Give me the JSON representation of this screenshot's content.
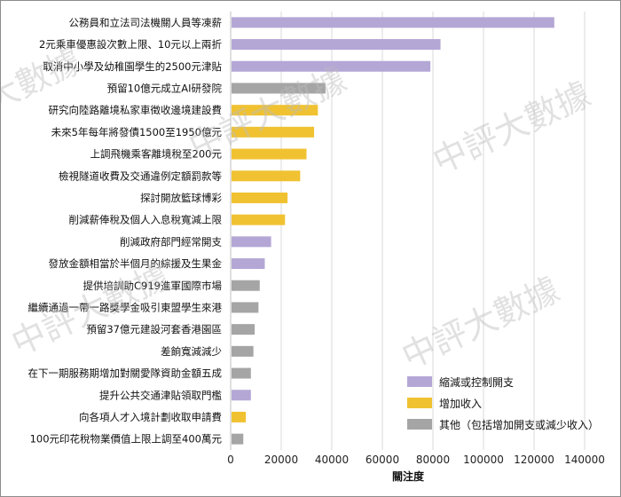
{
  "chart_data": {
    "type": "bar",
    "orientation": "horizontal",
    "xlabel": "關注度",
    "xlim": [
      0,
      140000
    ],
    "xticks": [
      0,
      20000,
      40000,
      60000,
      80000,
      100000,
      120000,
      140000
    ],
    "grid": "vertical",
    "legend_position": "bottom-right",
    "series": [
      {
        "name": "縮減或控制開支",
        "color": "#b4a7d6"
      },
      {
        "name": "增加收入",
        "color": "#f0c232"
      },
      {
        "name": "其他（包括增加開支或減少收入）",
        "color": "#a5a5a5"
      }
    ],
    "categories": [
      "公務員和立法司法機關人員等凍薪",
      "2元乘車優惠設次數上限、10元以上兩折",
      "取消中小學及幼稚園學生的2500元津貼",
      "預留10億元成立AI研發院",
      "研究向陸路離境私家車徵收邊境建設費",
      "未來5年每年將發債1500至1950億元",
      "上調飛機乘客離境稅至200元",
      "檢視隧道收費及交通違例定額罰款等",
      "探討開放籃球博彩",
      "削減薪俸稅及個人入息稅寬減上限",
      "削減政府部門經常開支",
      "發放金額相當於半個月的綜援及生果金",
      "提供培訓助C919進軍國際市場",
      "繼續通過一帶一路獎學金吸引東盟學生來港",
      "預留37億元建設河套香港園區",
      "差餉寬減減少",
      "在下一期服務期增加對關愛隊資助金額五成",
      "提升公共交通津貼領取門檻",
      "向各項人才入境計劃收取申請費",
      "100元印花稅物業價值上限上調至400萬元"
    ],
    "values": [
      128000,
      83000,
      79000,
      37500,
      34500,
      33000,
      30000,
      27500,
      22500,
      21500,
      16000,
      13500,
      11500,
      11000,
      9500,
      9000,
      8000,
      8000,
      6000,
      5000
    ],
    "series_index": [
      0,
      0,
      0,
      2,
      1,
      1,
      1,
      1,
      1,
      1,
      0,
      0,
      2,
      2,
      2,
      2,
      2,
      0,
      1,
      2
    ]
  },
  "watermark": {
    "text_main": "中評大數據",
    "text_partial": "大數據"
  }
}
